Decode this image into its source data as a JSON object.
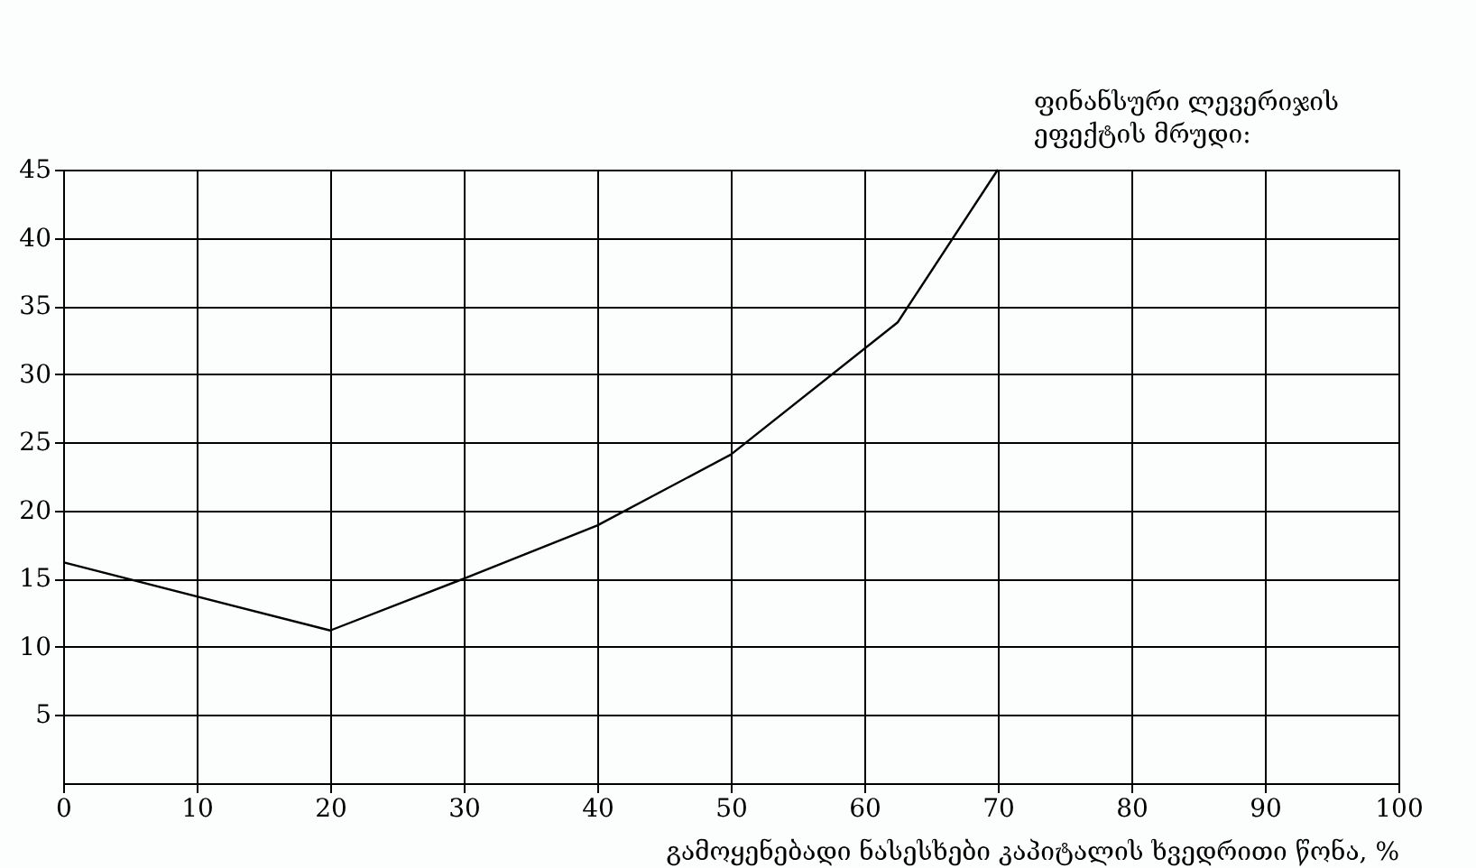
{
  "chart_data": {
    "type": "line",
    "x": [
      0,
      20,
      30,
      40,
      50,
      62.5,
      70
    ],
    "series": [
      {
        "color": "#000000",
        "values": [
          16.2,
          11.2,
          15,
          18.9,
          24.1,
          33.8,
          45
        ]
      }
    ],
    "xlabel": "გამოყენებადი ნასესხები კაპიტალის ხვედრითი წონა, %",
    "xlim": [
      0,
      100
    ],
    "xticks": [
      0,
      10,
      20,
      30,
      40,
      50,
      60,
      70,
      80,
      90,
      100
    ],
    "ylim": [
      0,
      45
    ],
    "yticks": [
      5,
      10,
      15,
      20,
      25,
      30,
      35,
      40,
      45
    ],
    "grid": true,
    "marker": "none",
    "line_style": "solid",
    "annotations": [
      {
        "text": "ფინანსური ლევერიჯის ეფექტის მრუდი:",
        "x": 70,
        "y": 45
      }
    ]
  }
}
